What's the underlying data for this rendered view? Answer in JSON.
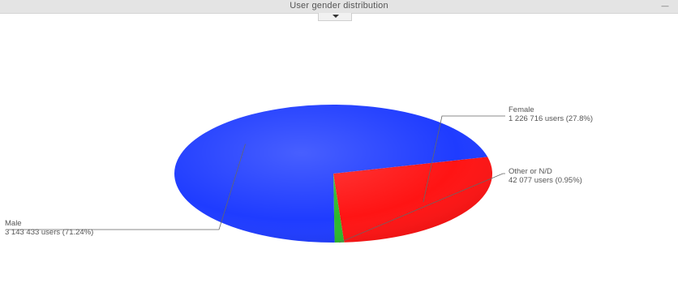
{
  "window": {
    "title": "User gender distribution",
    "collapse_icon": "minus-icon",
    "dropdown_icon": "caret-down-icon"
  },
  "chart_data": {
    "type": "pie",
    "title": "User gender distribution",
    "slices": [
      {
        "name": "Female",
        "value": 1226716,
        "percent": 27.8,
        "label_line2": "1 226 716 users (27.8%)",
        "color": "#ff1414"
      },
      {
        "name": "Other or N/D",
        "value": 42077,
        "percent": 0.95,
        "label_line2": "42 077 users (0.95%)",
        "color": "#2db82d"
      },
      {
        "name": "Male",
        "value": 3143433,
        "percent": 71.24,
        "label_line2": "3 143 433 users (71.24%)",
        "color": "#1f3cff"
      }
    ],
    "start_angle_deg": -14,
    "legend": "none",
    "grid": false
  }
}
